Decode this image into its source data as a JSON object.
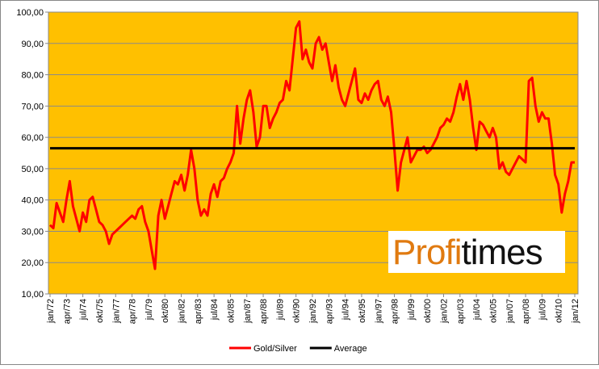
{
  "chart_data": {
    "type": "line",
    "categories": [
      "jan/72",
      null,
      null,
      null,
      null,
      "apr/73",
      null,
      null,
      null,
      null,
      "jul/74",
      null,
      null,
      null,
      null,
      "okt/75",
      null,
      null,
      null,
      null,
      "jan/77",
      null,
      null,
      null,
      null,
      "apr/78",
      null,
      null,
      null,
      null,
      "jul/79",
      null,
      null,
      null,
      null,
      "okt/80",
      null,
      null,
      null,
      null,
      "jan/82",
      null,
      null,
      null,
      null,
      "apr/83",
      null,
      null,
      null,
      null,
      "jul/84",
      null,
      null,
      null,
      null,
      "okt/85",
      null,
      null,
      null,
      null,
      "jan/87",
      null,
      null,
      null,
      null,
      "apr/88",
      null,
      null,
      null,
      null,
      "jul/89",
      null,
      null,
      null,
      null,
      "okt/90",
      null,
      null,
      null,
      null,
      "jan/92",
      null,
      null,
      null,
      null,
      "apr/93",
      null,
      null,
      null,
      null,
      "jul/94",
      null,
      null,
      null,
      null,
      "okt/95",
      null,
      null,
      null,
      null,
      "jan/97",
      null,
      null,
      null,
      null,
      "apr/98",
      null,
      null,
      null,
      null,
      "jul/99",
      null,
      null,
      null,
      null,
      "okt/00",
      null,
      null,
      null,
      null,
      "jan/02",
      null,
      null,
      null,
      null,
      "apr/03",
      null,
      null,
      null,
      null,
      "jul/04",
      null,
      null,
      null,
      null,
      "okt/05",
      null,
      null,
      null,
      null,
      "jan/07",
      null,
      null,
      null,
      null,
      "apr/08",
      null,
      null,
      null,
      null,
      "jul/09",
      null,
      null,
      null,
      null,
      "okt/10",
      null,
      null,
      null,
      null,
      "jan/12"
    ],
    "series": [
      {
        "name": "Gold/Silver",
        "color": "#ff0000",
        "values": [
          32,
          31,
          39,
          36,
          33,
          40,
          46,
          38,
          34,
          30,
          36,
          33,
          40,
          41,
          37,
          33,
          32,
          30,
          26,
          29,
          30,
          31,
          32,
          33,
          34,
          35,
          34,
          37,
          38,
          33,
          30,
          24,
          18,
          35,
          40,
          34,
          38,
          42,
          46,
          45,
          48,
          43,
          48,
          56,
          50,
          40,
          35,
          37,
          35,
          42,
          45,
          41,
          46,
          47,
          50,
          52,
          55,
          70,
          58,
          66,
          72,
          75,
          68,
          57,
          60,
          70,
          70,
          63,
          66,
          68,
          71,
          72,
          78,
          75,
          85,
          95,
          97,
          85,
          88,
          84,
          82,
          90,
          92,
          88,
          90,
          84,
          78,
          83,
          76,
          72,
          70,
          74,
          78,
          82,
          72,
          71,
          74,
          72,
          75,
          77,
          78,
          72,
          70,
          73,
          68,
          56,
          43,
          52,
          56,
          60,
          52,
          54,
          56,
          56,
          57,
          55,
          56,
          58,
          60,
          63,
          64,
          66,
          65,
          68,
          73,
          77,
          72,
          78,
          72,
          63,
          56,
          65,
          64,
          62,
          60,
          63,
          60,
          50,
          52,
          49,
          48,
          50,
          52,
          54,
          53,
          52,
          78,
          79,
          70,
          65,
          68,
          66,
          66,
          58,
          48,
          45,
          36,
          42,
          46,
          52,
          52
        ]
      }
    ],
    "reference_lines": [
      {
        "name": "Average",
        "color": "#000000",
        "value": 56.5
      }
    ],
    "ylim": [
      10,
      100
    ],
    "yticks": [
      {
        "value": 10,
        "label": "10,00"
      },
      {
        "value": 20,
        "label": "20,00"
      },
      {
        "value": 30,
        "label": "30,00"
      },
      {
        "value": 40,
        "label": "40,00"
      },
      {
        "value": 50,
        "label": "50,00"
      },
      {
        "value": 60,
        "label": "60,00"
      },
      {
        "value": 70,
        "label": "70,00"
      },
      {
        "value": 80,
        "label": "80,00"
      },
      {
        "value": 90,
        "label": "90,00"
      },
      {
        "value": 100,
        "label": "100,00"
      }
    ],
    "grid": true,
    "background": "#ffc000",
    "legend": "bottom",
    "logo": [
      "Profi",
      "times"
    ]
  }
}
